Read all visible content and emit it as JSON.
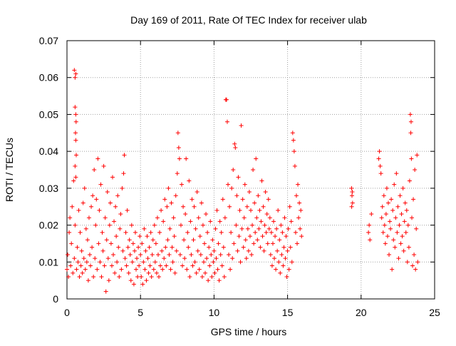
{
  "chart_data": {
    "type": "scatter",
    "title": "Day 169 of 2011, Rate Of TEC Index for receiver ulab",
    "xlabel": "GPS time / hours",
    "ylabel": "ROTI / TECUs",
    "xlim": [
      0,
      25
    ],
    "ylim": [
      0,
      0.07
    ],
    "x_ticks": [
      0,
      5,
      10,
      15,
      20,
      25
    ],
    "x_tick_labels": [
      "0",
      "5",
      "10",
      "15",
      "20",
      "25"
    ],
    "y_ticks": [
      0,
      0.01,
      0.02,
      0.03,
      0.04,
      0.05,
      0.06,
      0.07
    ],
    "y_tick_labels": [
      "0",
      "0.01",
      "0.02",
      "0.03",
      "0.04",
      "0.05",
      "0.06",
      "0.07"
    ],
    "grid": true,
    "legend": "none",
    "marker": "plus",
    "color": "#ff0000",
    "points": [
      [
        0.0,
        0.008
      ],
      [
        0.05,
        0.012
      ],
      [
        0.1,
        0.006
      ],
      [
        0.15,
        0.018
      ],
      [
        0.2,
        0.022
      ],
      [
        0.25,
        0.009
      ],
      [
        0.3,
        0.015
      ],
      [
        0.35,
        0.025
      ],
      [
        0.4,
        0.007
      ],
      [
        0.45,
        0.032
      ],
      [
        0.5,
        0.011
      ],
      [
        0.55,
        0.02
      ],
      [
        0.6,
        0.033
      ],
      [
        0.65,
        0.008
      ],
      [
        0.7,
        0.014
      ],
      [
        0.75,
        0.01
      ],
      [
        0.8,
        0.024
      ],
      [
        0.85,
        0.006
      ],
      [
        0.9,
        0.018
      ],
      [
        0.95,
        0.009
      ],
      [
        0.5,
        0.062
      ],
      [
        0.55,
        0.06
      ],
      [
        0.6,
        0.061
      ],
      [
        0.55,
        0.052
      ],
      [
        0.6,
        0.05
      ],
      [
        0.62,
        0.048
      ],
      [
        0.58,
        0.045
      ],
      [
        0.6,
        0.043
      ],
      [
        0.63,
        0.039
      ],
      [
        0.55,
        0.036
      ],
      [
        1.0,
        0.013
      ],
      [
        1.05,
        0.007
      ],
      [
        1.1,
        0.026
      ],
      [
        1.15,
        0.011
      ],
      [
        1.2,
        0.03
      ],
      [
        1.25,
        0.008
      ],
      [
        1.3,
        0.019
      ],
      [
        1.35,
        0.01
      ],
      [
        1.4,
        0.016
      ],
      [
        1.45,
        0.005
      ],
      [
        1.5,
        0.022
      ],
      [
        1.55,
        0.012
      ],
      [
        1.6,
        0.009
      ],
      [
        1.65,
        0.025
      ],
      [
        1.7,
        0.014
      ],
      [
        1.75,
        0.028
      ],
      [
        1.8,
        0.006
      ],
      [
        1.85,
        0.035
      ],
      [
        1.9,
        0.011
      ],
      [
        1.95,
        0.02
      ],
      [
        2.0,
        0.027
      ],
      [
        2.05,
        0.008
      ],
      [
        2.1,
        0.038
      ],
      [
        2.15,
        0.015
      ],
      [
        2.2,
        0.024
      ],
      [
        2.25,
        0.01
      ],
      [
        2.3,
        0.031
      ],
      [
        2.35,
        0.006
      ],
      [
        2.4,
        0.018
      ],
      [
        2.45,
        0.013
      ],
      [
        2.5,
        0.036
      ],
      [
        2.55,
        0.009
      ],
      [
        2.6,
        0.022
      ],
      [
        2.65,
        0.002
      ],
      [
        2.7,
        0.016
      ],
      [
        2.75,
        0.029
      ],
      [
        2.8,
        0.011
      ],
      [
        2.85,
        0.005
      ],
      [
        2.9,
        0.02
      ],
      [
        2.95,
        0.026
      ],
      [
        3.0,
        0.015
      ],
      [
        3.05,
        0.009
      ],
      [
        3.1,
        0.033
      ],
      [
        3.15,
        0.012
      ],
      [
        3.2,
        0.021
      ],
      [
        3.25,
        0.007
      ],
      [
        3.3,
        0.025
      ],
      [
        3.35,
        0.017
      ],
      [
        3.4,
        0.01
      ],
      [
        3.45,
        0.028
      ],
      [
        3.5,
        0.014
      ],
      [
        3.55,
        0.006
      ],
      [
        3.6,
        0.019
      ],
      [
        3.65,
        0.023
      ],
      [
        3.7,
        0.008
      ],
      [
        3.75,
        0.03
      ],
      [
        3.8,
        0.013
      ],
      [
        3.85,
        0.034
      ],
      [
        3.9,
        0.039
      ],
      [
        3.95,
        0.011
      ],
      [
        4.0,
        0.018
      ],
      [
        4.05,
        0.009
      ],
      [
        4.1,
        0.024
      ],
      [
        4.15,
        0.014
      ],
      [
        4.2,
        0.007
      ],
      [
        4.25,
        0.016
      ],
      [
        4.3,
        0.012
      ],
      [
        4.35,
        0.005
      ],
      [
        4.4,
        0.02
      ],
      [
        4.45,
        0.01
      ],
      [
        4.5,
        0.015
      ],
      [
        4.55,
        0.004
      ],
      [
        4.6,
        0.013
      ],
      [
        4.65,
        0.018
      ],
      [
        4.7,
        0.008
      ],
      [
        4.75,
        0.011
      ],
      [
        4.8,
        0.006
      ],
      [
        4.85,
        0.014
      ],
      [
        4.9,
        0.009
      ],
      [
        4.95,
        0.017
      ],
      [
        5.0,
        0.012
      ],
      [
        5.05,
        0.006
      ],
      [
        5.1,
        0.015
      ],
      [
        5.15,
        0.004
      ],
      [
        5.2,
        0.01
      ],
      [
        5.25,
        0.019
      ],
      [
        5.3,
        0.008
      ],
      [
        5.35,
        0.013
      ],
      [
        5.4,
        0.005
      ],
      [
        5.45,
        0.017
      ],
      [
        5.5,
        0.011
      ],
      [
        5.55,
        0.007
      ],
      [
        5.6,
        0.014
      ],
      [
        5.65,
        0.009
      ],
      [
        5.7,
        0.018
      ],
      [
        5.75,
        0.006
      ],
      [
        5.8,
        0.012
      ],
      [
        5.85,
        0.016
      ],
      [
        5.9,
        0.008
      ],
      [
        5.95,
        0.02
      ],
      [
        6.0,
        0.01
      ],
      [
        6.05,
        0.015
      ],
      [
        6.1,
        0.007
      ],
      [
        6.15,
        0.022
      ],
      [
        6.2,
        0.012
      ],
      [
        6.25,
        0.006
      ],
      [
        6.3,
        0.018
      ],
      [
        6.35,
        0.009
      ],
      [
        6.4,
        0.024
      ],
      [
        6.45,
        0.013
      ],
      [
        6.5,
        0.008
      ],
      [
        6.55,
        0.021
      ],
      [
        6.6,
        0.011
      ],
      [
        6.65,
        0.027
      ],
      [
        6.7,
        0.014
      ],
      [
        6.75,
        0.009
      ],
      [
        6.8,
        0.025
      ],
      [
        6.85,
        0.016
      ],
      [
        6.9,
        0.03
      ],
      [
        6.95,
        0.012
      ],
      [
        7.0,
        0.019
      ],
      [
        7.05,
        0.008
      ],
      [
        7.1,
        0.026
      ],
      [
        7.15,
        0.014
      ],
      [
        7.2,
        0.01
      ],
      [
        7.25,
        0.022
      ],
      [
        7.3,
        0.017
      ],
      [
        7.35,
        0.007
      ],
      [
        7.4,
        0.028
      ],
      [
        7.45,
        0.013
      ],
      [
        7.5,
        0.034
      ],
      [
        7.55,
        0.045
      ],
      [
        7.6,
        0.041
      ],
      [
        7.65,
        0.038
      ],
      [
        7.7,
        0.012
      ],
      [
        7.75,
        0.02
      ],
      [
        7.8,
        0.031
      ],
      [
        7.85,
        0.009
      ],
      [
        7.9,
        0.025
      ],
      [
        7.95,
        0.016
      ],
      [
        8.0,
        0.011
      ],
      [
        8.05,
        0.023
      ],
      [
        8.1,
        0.038
      ],
      [
        8.15,
        0.008
      ],
      [
        8.2,
        0.018
      ],
      [
        8.25,
        0.014
      ],
      [
        8.3,
        0.032
      ],
      [
        8.35,
        0.006
      ],
      [
        8.4,
        0.021
      ],
      [
        8.45,
        0.012
      ],
      [
        8.5,
        0.027
      ],
      [
        8.55,
        0.009
      ],
      [
        8.6,
        0.016
      ],
      [
        8.65,
        0.025
      ],
      [
        8.7,
        0.01
      ],
      [
        8.75,
        0.019
      ],
      [
        8.8,
        0.007
      ],
      [
        8.85,
        0.029
      ],
      [
        8.9,
        0.013
      ],
      [
        8.95,
        0.022
      ],
      [
        9.0,
        0.008
      ],
      [
        9.05,
        0.017
      ],
      [
        9.1,
        0.012
      ],
      [
        9.15,
        0.026
      ],
      [
        9.2,
        0.006
      ],
      [
        9.25,
        0.02
      ],
      [
        9.3,
        0.01
      ],
      [
        9.35,
        0.015
      ],
      [
        9.4,
        0.007
      ],
      [
        9.45,
        0.023
      ],
      [
        9.5,
        0.011
      ],
      [
        9.55,
        0.018
      ],
      [
        9.6,
        0.005
      ],
      [
        9.65,
        0.014
      ],
      [
        9.7,
        0.009
      ],
      [
        9.75,
        0.021
      ],
      [
        9.8,
        0.012
      ],
      [
        9.85,
        0.006
      ],
      [
        9.9,
        0.016
      ],
      [
        9.95,
        0.01
      ],
      [
        10.0,
        0.013
      ],
      [
        10.05,
        0.007
      ],
      [
        10.1,
        0.019
      ],
      [
        10.15,
        0.011
      ],
      [
        10.2,
        0.024
      ],
      [
        10.25,
        0.008
      ],
      [
        10.3,
        0.015
      ],
      [
        10.35,
        0.005
      ],
      [
        10.4,
        0.021
      ],
      [
        10.45,
        0.012
      ],
      [
        10.5,
        0.018
      ],
      [
        10.55,
        0.009
      ],
      [
        10.6,
        0.027
      ],
      [
        10.65,
        0.014
      ],
      [
        10.7,
        0.006
      ],
      [
        10.75,
        0.022
      ],
      [
        10.8,
        0.054
      ],
      [
        10.85,
        0.054
      ],
      [
        10.9,
        0.048
      ],
      [
        10.95,
        0.031
      ],
      [
        11.0,
        0.012
      ],
      [
        11.05,
        0.025
      ],
      [
        11.1,
        0.008
      ],
      [
        11.15,
        0.018
      ],
      [
        11.2,
        0.03
      ],
      [
        11.25,
        0.011
      ],
      [
        11.3,
        0.035
      ],
      [
        11.35,
        0.015
      ],
      [
        11.4,
        0.042
      ],
      [
        11.45,
        0.041
      ],
      [
        11.5,
        0.02
      ],
      [
        11.55,
        0.028
      ],
      [
        11.6,
        0.013
      ],
      [
        11.65,
        0.033
      ],
      [
        11.7,
        0.017
      ],
      [
        11.75,
        0.024
      ],
      [
        11.8,
        0.01
      ],
      [
        11.85,
        0.047
      ],
      [
        11.9,
        0.019
      ],
      [
        11.95,
        0.027
      ],
      [
        12.0,
        0.014
      ],
      [
        12.05,
        0.022
      ],
      [
        12.1,
        0.031
      ],
      [
        12.15,
        0.016
      ],
      [
        12.2,
        0.011
      ],
      [
        12.25,
        0.025
      ],
      [
        12.3,
        0.019
      ],
      [
        12.35,
        0.013
      ],
      [
        12.4,
        0.029
      ],
      [
        12.45,
        0.017
      ],
      [
        12.5,
        0.024
      ],
      [
        12.55,
        0.012
      ],
      [
        12.6,
        0.02
      ],
      [
        12.65,
        0.035
      ],
      [
        12.7,
        0.015
      ],
      [
        12.75,
        0.026
      ],
      [
        12.8,
        0.018
      ],
      [
        12.85,
        0.038
      ],
      [
        12.9,
        0.022
      ],
      [
        12.95,
        0.016
      ],
      [
        13.0,
        0.028
      ],
      [
        13.05,
        0.019
      ],
      [
        13.1,
        0.024
      ],
      [
        13.15,
        0.014
      ],
      [
        13.2,
        0.021
      ],
      [
        13.25,
        0.032
      ],
      [
        13.3,
        0.017
      ],
      [
        13.35,
        0.025
      ],
      [
        13.4,
        0.013
      ],
      [
        13.45,
        0.02
      ],
      [
        13.5,
        0.029
      ],
      [
        13.55,
        0.018
      ],
      [
        13.6,
        0.023
      ],
      [
        13.65,
        0.015
      ],
      [
        13.7,
        0.027
      ],
      [
        13.75,
        0.019
      ],
      [
        13.8,
        0.022
      ],
      [
        13.85,
        0.012
      ],
      [
        13.9,
        0.018
      ],
      [
        13.95,
        0.009
      ],
      [
        14.0,
        0.015
      ],
      [
        14.05,
        0.021
      ],
      [
        14.1,
        0.011
      ],
      [
        14.15,
        0.017
      ],
      [
        14.2,
        0.008
      ],
      [
        14.25,
        0.019
      ],
      [
        14.3,
        0.013
      ],
      [
        14.35,
        0.024
      ],
      [
        14.4,
        0.01
      ],
      [
        14.45,
        0.016
      ],
      [
        14.5,
        0.007
      ],
      [
        14.55,
        0.02
      ],
      [
        14.6,
        0.012
      ],
      [
        14.65,
        0.018
      ],
      [
        14.7,
        0.009
      ],
      [
        14.75,
        0.014
      ],
      [
        14.8,
        0.022
      ],
      [
        14.85,
        0.011
      ],
      [
        14.9,
        0.017
      ],
      [
        14.95,
        0.006
      ],
      [
        15.0,
        0.013
      ],
      [
        15.05,
        0.019
      ],
      [
        15.1,
        0.008
      ],
      [
        15.15,
        0.025
      ],
      [
        15.2,
        0.014
      ],
      [
        15.25,
        0.021
      ],
      [
        15.3,
        0.01
      ],
      [
        15.35,
        0.045
      ],
      [
        15.4,
        0.043
      ],
      [
        15.45,
        0.04
      ],
      [
        15.5,
        0.036
      ],
      [
        15.55,
        0.018
      ],
      [
        15.6,
        0.028
      ],
      [
        15.65,
        0.015
      ],
      [
        15.7,
        0.031
      ],
      [
        15.75,
        0.022
      ],
      [
        15.8,
        0.026
      ],
      [
        15.85,
        0.019
      ],
      [
        15.9,
        0.024
      ],
      [
        15.95,
        0.017
      ],
      [
        19.35,
        0.03
      ],
      [
        19.4,
        0.029
      ],
      [
        19.38,
        0.028
      ],
      [
        19.42,
        0.026
      ],
      [
        19.36,
        0.025
      ],
      [
        20.5,
        0.018
      ],
      [
        20.55,
        0.02
      ],
      [
        20.6,
        0.016
      ],
      [
        20.7,
        0.023
      ],
      [
        21.2,
        0.038
      ],
      [
        21.25,
        0.04
      ],
      [
        21.3,
        0.036
      ],
      [
        21.35,
        0.034
      ],
      [
        21.4,
        0.022
      ],
      [
        21.45,
        0.025
      ],
      [
        21.5,
        0.018
      ],
      [
        21.55,
        0.028
      ],
      [
        21.6,
        0.02
      ],
      [
        21.65,
        0.015
      ],
      [
        21.7,
        0.023
      ],
      [
        21.75,
        0.03
      ],
      [
        21.8,
        0.017
      ],
      [
        21.85,
        0.026
      ],
      [
        21.9,
        0.012
      ],
      [
        21.95,
        0.021
      ],
      [
        22.0,
        0.019
      ],
      [
        22.05,
        0.027
      ],
      [
        22.1,
        0.008
      ],
      [
        22.15,
        0.024
      ],
      [
        22.2,
        0.016
      ],
      [
        22.25,
        0.031
      ],
      [
        22.3,
        0.014
      ],
      [
        22.35,
        0.022
      ],
      [
        22.4,
        0.034
      ],
      [
        22.45,
        0.018
      ],
      [
        22.5,
        0.025
      ],
      [
        22.55,
        0.011
      ],
      [
        22.6,
        0.02
      ],
      [
        22.65,
        0.028
      ],
      [
        22.7,
        0.015
      ],
      [
        22.75,
        0.023
      ],
      [
        22.8,
        0.017
      ],
      [
        22.85,
        0.03
      ],
      [
        22.9,
        0.013
      ],
      [
        22.95,
        0.021
      ],
      [
        23.0,
        0.026
      ],
      [
        23.05,
        0.018
      ],
      [
        23.1,
        0.024
      ],
      [
        23.15,
        0.01
      ],
      [
        23.2,
        0.02
      ],
      [
        23.25,
        0.014
      ],
      [
        23.3,
        0.032
      ],
      [
        23.35,
        0.05
      ],
      [
        23.4,
        0.048
      ],
      [
        23.38,
        0.045
      ],
      [
        23.42,
        0.038
      ],
      [
        23.45,
        0.022
      ],
      [
        23.5,
        0.009
      ],
      [
        23.55,
        0.027
      ],
      [
        23.6,
        0.012
      ],
      [
        23.65,
        0.035
      ],
      [
        23.7,
        0.008
      ],
      [
        23.75,
        0.019
      ],
      [
        23.8,
        0.039
      ],
      [
        23.85,
        0.01
      ]
    ]
  }
}
